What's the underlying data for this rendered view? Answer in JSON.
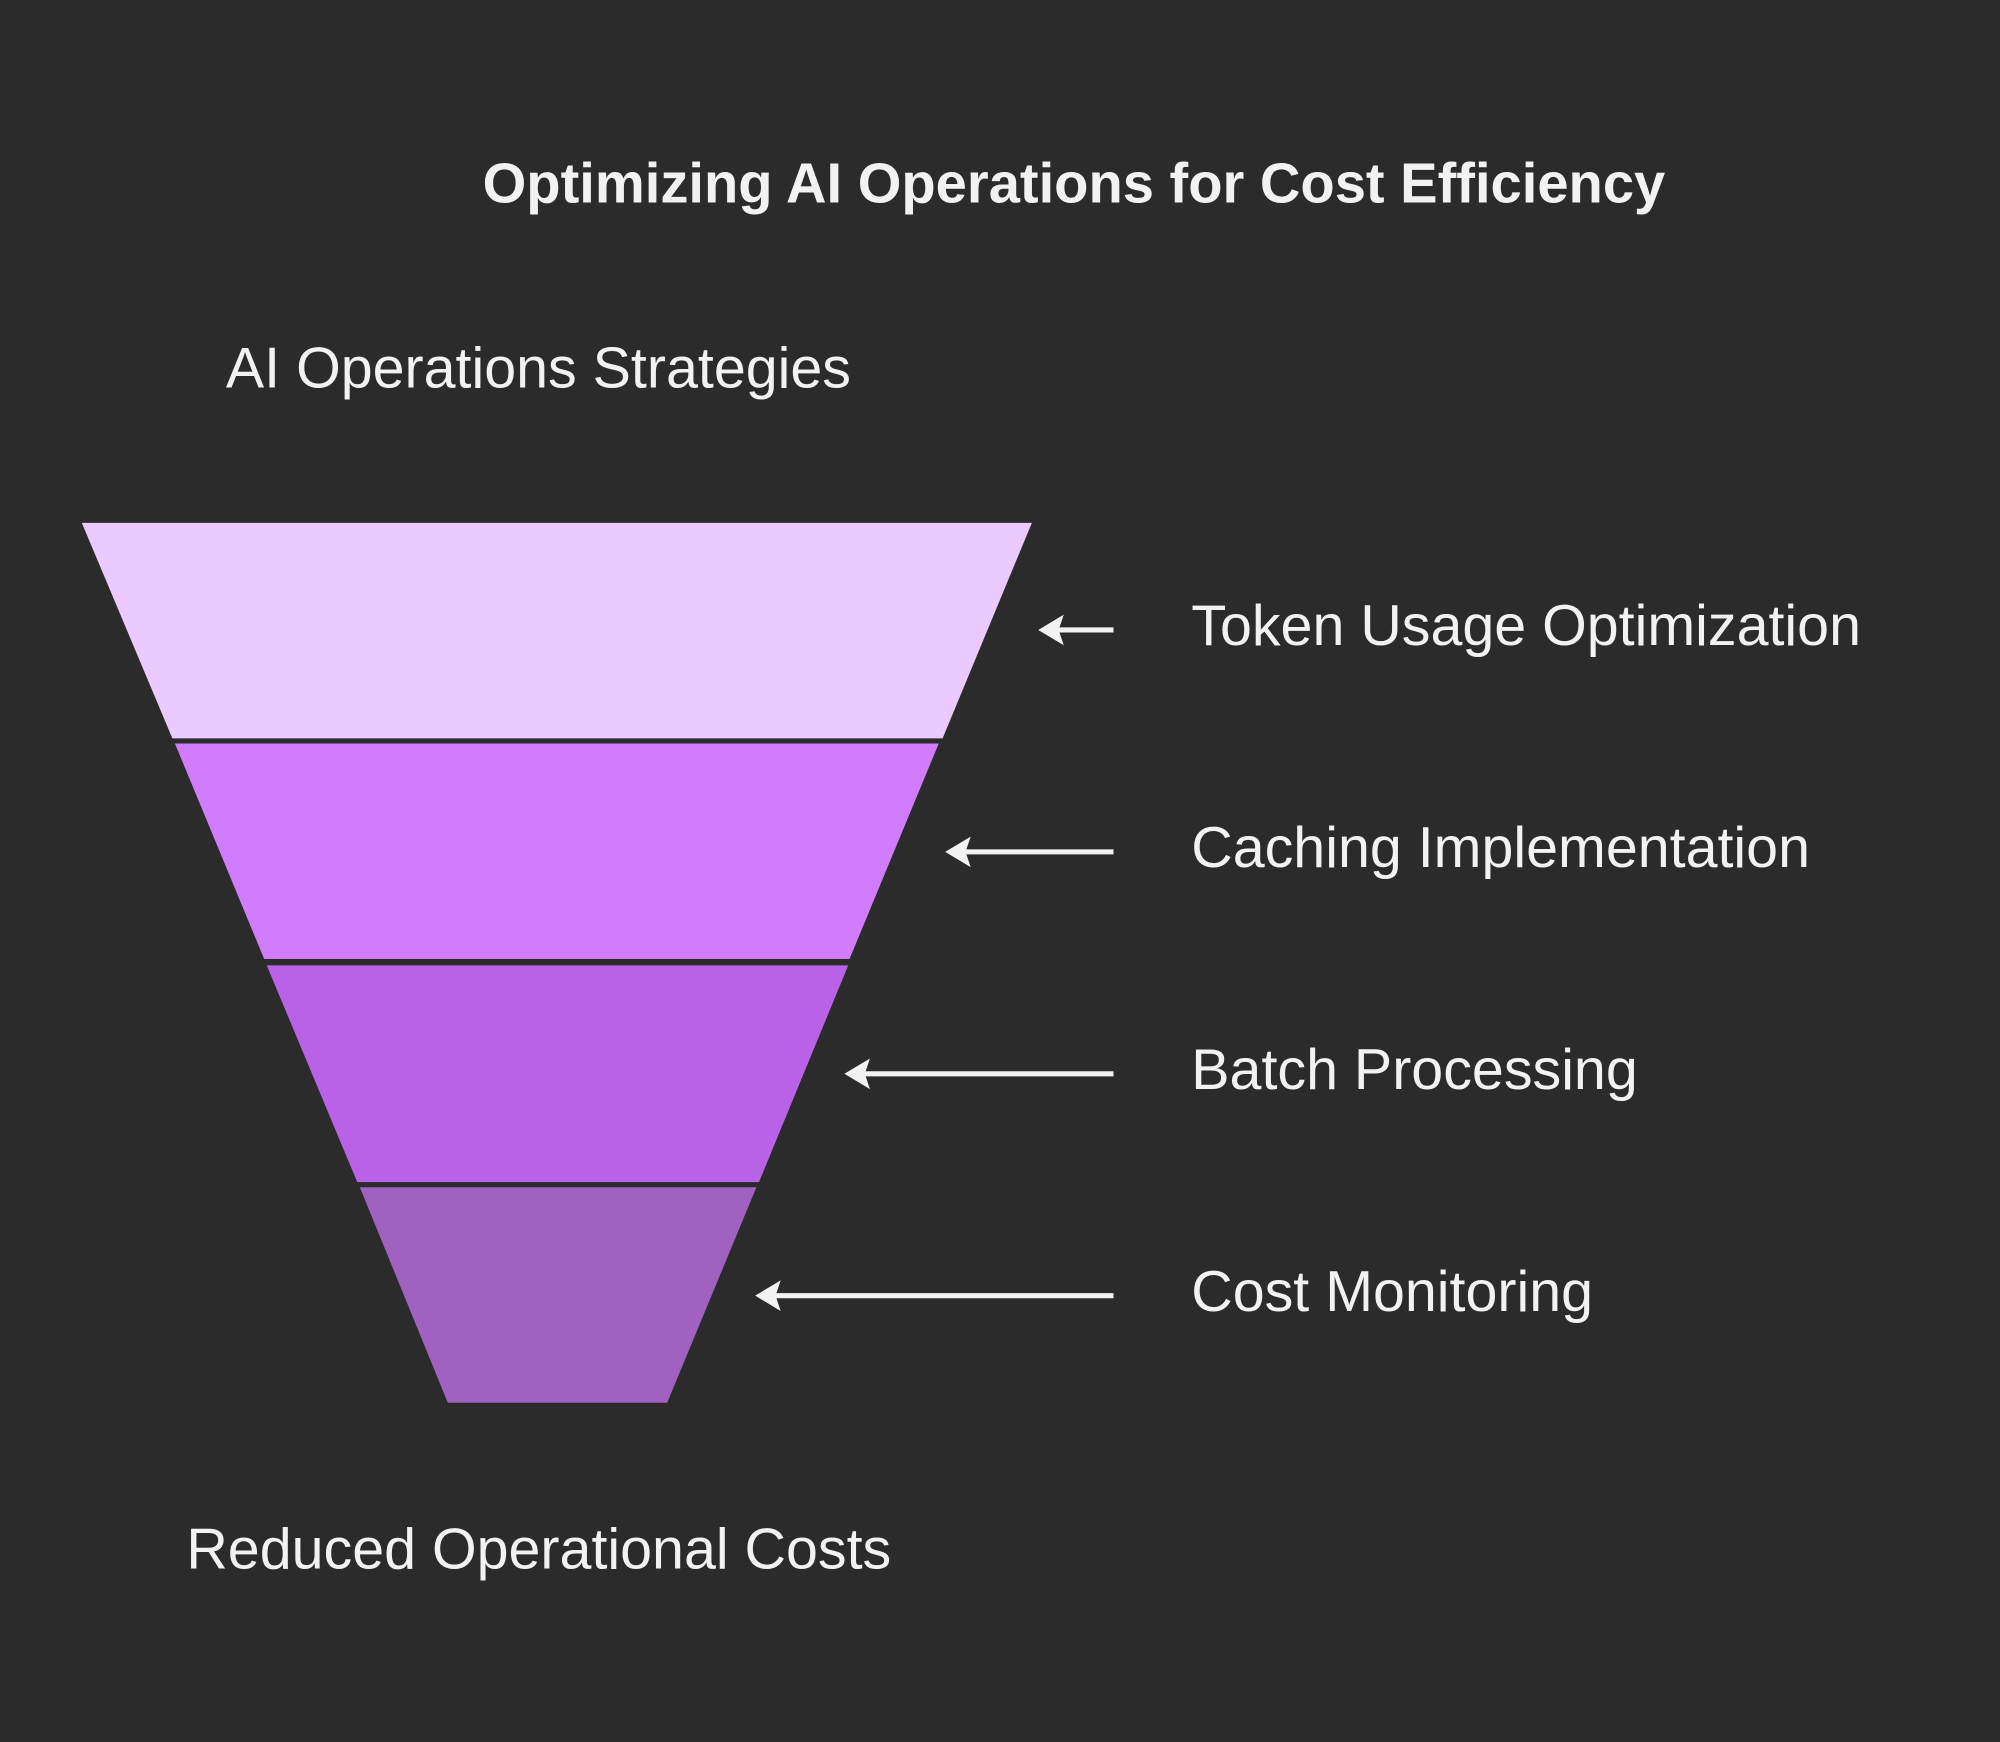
{
  "title": "Optimizing AI Operations for Cost Efficiency",
  "top_label": "AI Operations Strategies",
  "bottom_label": "Reduced Operational Costs",
  "stages": [
    {
      "label": "Token Usage Optimization"
    },
    {
      "label": "Caching Implementation"
    },
    {
      "label": "Batch Processing"
    },
    {
      "label": "Cost Monitoring"
    }
  ]
}
